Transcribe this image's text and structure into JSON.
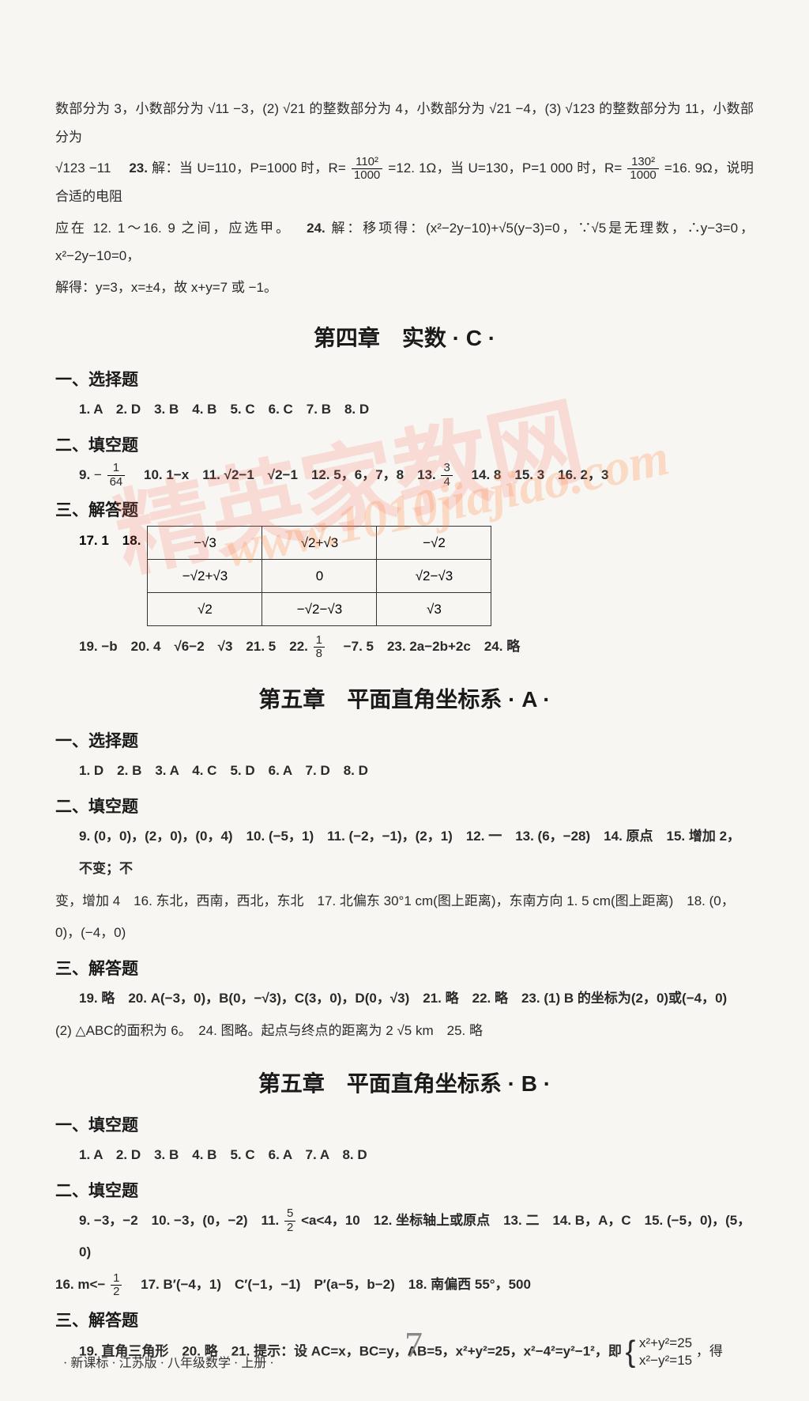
{
  "intro": {
    "line1_prefix": "数部分为 3，小数部分为 ",
    "line1_sq11": "√11",
    "line1_mid1": "−3，(2) ",
    "line1_sq21a": "√21",
    "line1_mid2": "的整数部分为 4，小数部分为 ",
    "line1_sq21b": "√21",
    "line1_mid3": "−4，(3) ",
    "line1_sq123a": "√123",
    "line1_end": "的整数部分为 11，小数部分为",
    "line2_sq123": "√123",
    "line2_prefix": "−11　",
    "q23_label": "23.",
    "q23_text1": " 解：当 U=110，P=1000 时，R=",
    "q23_frac1_num": "110²",
    "q23_frac1_den": "1000",
    "q23_text2": "=12. 1Ω，当 U=130，P=1 000 时，R=",
    "q23_frac2_num": "130²",
    "q23_frac2_den": "1000",
    "q23_text3": "=16. 9Ω，说明合适的电阻",
    "line3": "应在 12. 1～16. 9 之间，应选甲。　",
    "q24_label": "24.",
    "q24_text": " 解：移项得：(x²−2y−10)+√5(y−3)=0，∵√5是无理数，∴y−3=0，x²−2y−10=0，",
    "line4": "解得：y=3，x=±4，故 x+y=7 或 −1。"
  },
  "chapter4C": {
    "title": "第四章　实数 · C ·",
    "sec1_title": "一、选择题",
    "sec1_ans": "1. A　2. D　3. B　4. B　5. C　6. C　7. B　8. D",
    "sec2_title": "二、填空题",
    "sec2_q9": "9. ",
    "sec2_q9_neg": "−",
    "sec2_frac9_num": "1",
    "sec2_frac9_den": "64",
    "sec2_q10": "　10. 1−x　11. √2−1　√2−1　12. 5，6，7，8　13. ",
    "sec2_frac13_num": "3",
    "sec2_frac13_den": "4",
    "sec2_q14": "　14. 8　15. 3　16. 2，3",
    "sec3_title": "三、解答题",
    "q17_label": "17. 1　18.",
    "table": {
      "r1c1": "−√3",
      "r1c2": "√2+√3",
      "r1c3": "−√2",
      "r2c1": "−√2+√3",
      "r2c2": "0",
      "r2c3": "√2−√3",
      "r3c1": "√2",
      "r3c2": "−√2−√3",
      "r3c3": "√3"
    },
    "q19_line": "19. −b　20. 4　√6−2　√3　21. 5　22. ",
    "q22_frac_num": "1",
    "q22_frac_den": "8",
    "q22_rest": "　−7. 5　23. 2a−2b+2c　24. 略"
  },
  "chapter5A": {
    "title": "第五章　平面直角坐标系 · A ·",
    "sec1_title": "一、选择题",
    "sec1_ans": "1. D　2. B　3. A　4. C　5. D　6. A　7. D　8. D",
    "sec2_title": "二、填空题",
    "sec2_line1": "9. (0，0)，(2，0)，(0，4)　10. (−5，1)　11. (−2，−1)，(2，1)　12. 一　13. (6，−28)　14. 原点　15. 增加 2，不变；不",
    "sec2_line2": "变，增加 4　16. 东北，西南，西北，东北　17. 北偏东 30°1 cm(图上距离)，东南方向 1. 5 cm(图上距离)　18. (0，0)，(−4，0)",
    "sec3_title": "三、解答题",
    "sec3_line1": "19. 略　20. A(−3，0)，B(0，−√3)，C(3，0)，D(0，√3)　21. 略　22. 略　23. (1) B 的坐标为(2，0)或(−4，0)",
    "sec3_line2": "(2) △ABC的面积为 6。　24. 图略。起点与终点的距离为 2 √5 km　25. 略"
  },
  "chapter5B": {
    "title": "第五章　平面直角坐标系 · B ·",
    "sec1_title": "一、填空题",
    "sec1_ans": "1. A　2. D　3. B　4. B　5. C　6. A　7. A　8. D",
    "sec2_title": "二、填空题",
    "sec2_q9": "9. −3，−2　10. −3，(0，−2)　11. ",
    "sec2_frac11_num": "5",
    "sec2_frac11_den": "2",
    "sec2_q11rest": "<a<4，10　12. 坐标轴上或原点　13. 二　14. B，A，C　15. (−5，0)，(5，0)",
    "sec2_q16": "16. m<−",
    "sec2_frac16_num": "1",
    "sec2_frac16_den": "2",
    "sec2_q16rest": "　17. B′(−4，1)　C′(−1，−1)　P′(a−5，b−2)　18. 南偏西 55°，500",
    "sec3_title": "三、解答题",
    "sec3_q19": "19. 直角三角形　20. 略　21. 提示：设 AC=x，BC=y，AB=5，x²+y²=25，x²−4²=y²−1²，即",
    "brace_top": "x²+y²=25",
    "brace_bot": "x²−y²=15",
    "sec3_end": "，得"
  },
  "footer": "· 新课标 · 江苏版 · 八年级数学 · 上册 ·",
  "page_curl": "7",
  "watermark": "精英家教网",
  "watermark_url": "www.1010jiajiao.com"
}
